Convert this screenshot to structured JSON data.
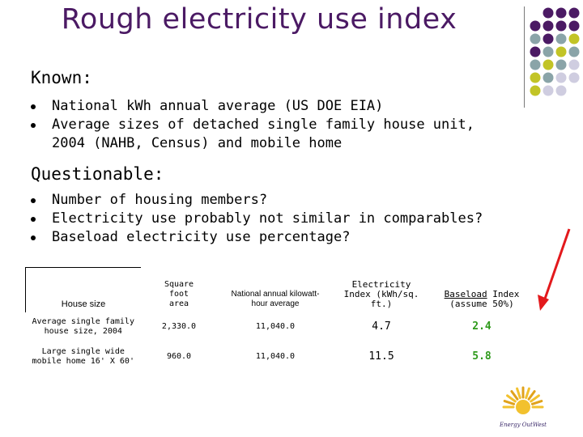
{
  "slide": {
    "title": "Rough electricity use index",
    "known_heading": "Known:",
    "known_items": [
      "National kWh annual average (US DOE EIA)",
      "Average sizes of detached single family house unit, 2004 (NAHB, Census) and mobile home"
    ],
    "questionable_heading": "Questionable:",
    "questionable_items": [
      "Number of housing members?",
      "Electricity use probably not similar in comparables?",
      "Baseload electricity use percentage?"
    ]
  },
  "table": {
    "headers": {
      "house_size": "House size",
      "sqft": "Square foot area",
      "national": "National annual kilowatt-hour average",
      "elec_index": "Electricity Index (kWh/sq. ft.)",
      "baseload_word": "Baseload",
      "baseload_rest": " Index (assume 50%)"
    },
    "rows": [
      {
        "label": "Average single family house size, 2004",
        "sqft": "2,330.0",
        "kwh": "11,040.0",
        "index": "4.7",
        "baseload": "2.4"
      },
      {
        "label": "Large single wide mobile home 16' X 60'",
        "sqft": "960.0",
        "kwh": "11,040.0",
        "index": "11.5",
        "baseload": "5.8"
      }
    ]
  },
  "logo": {
    "text": "Energy OutWest"
  },
  "colors": {
    "title": "#4b1a64",
    "purple_dot": "#4b1a64",
    "teal_dot": "#8aa4a8",
    "lime_dot": "#c2c426",
    "lavender_dot": "#cfcde0",
    "index_green": "#2f9a1c",
    "arrow": "#e3191c"
  }
}
